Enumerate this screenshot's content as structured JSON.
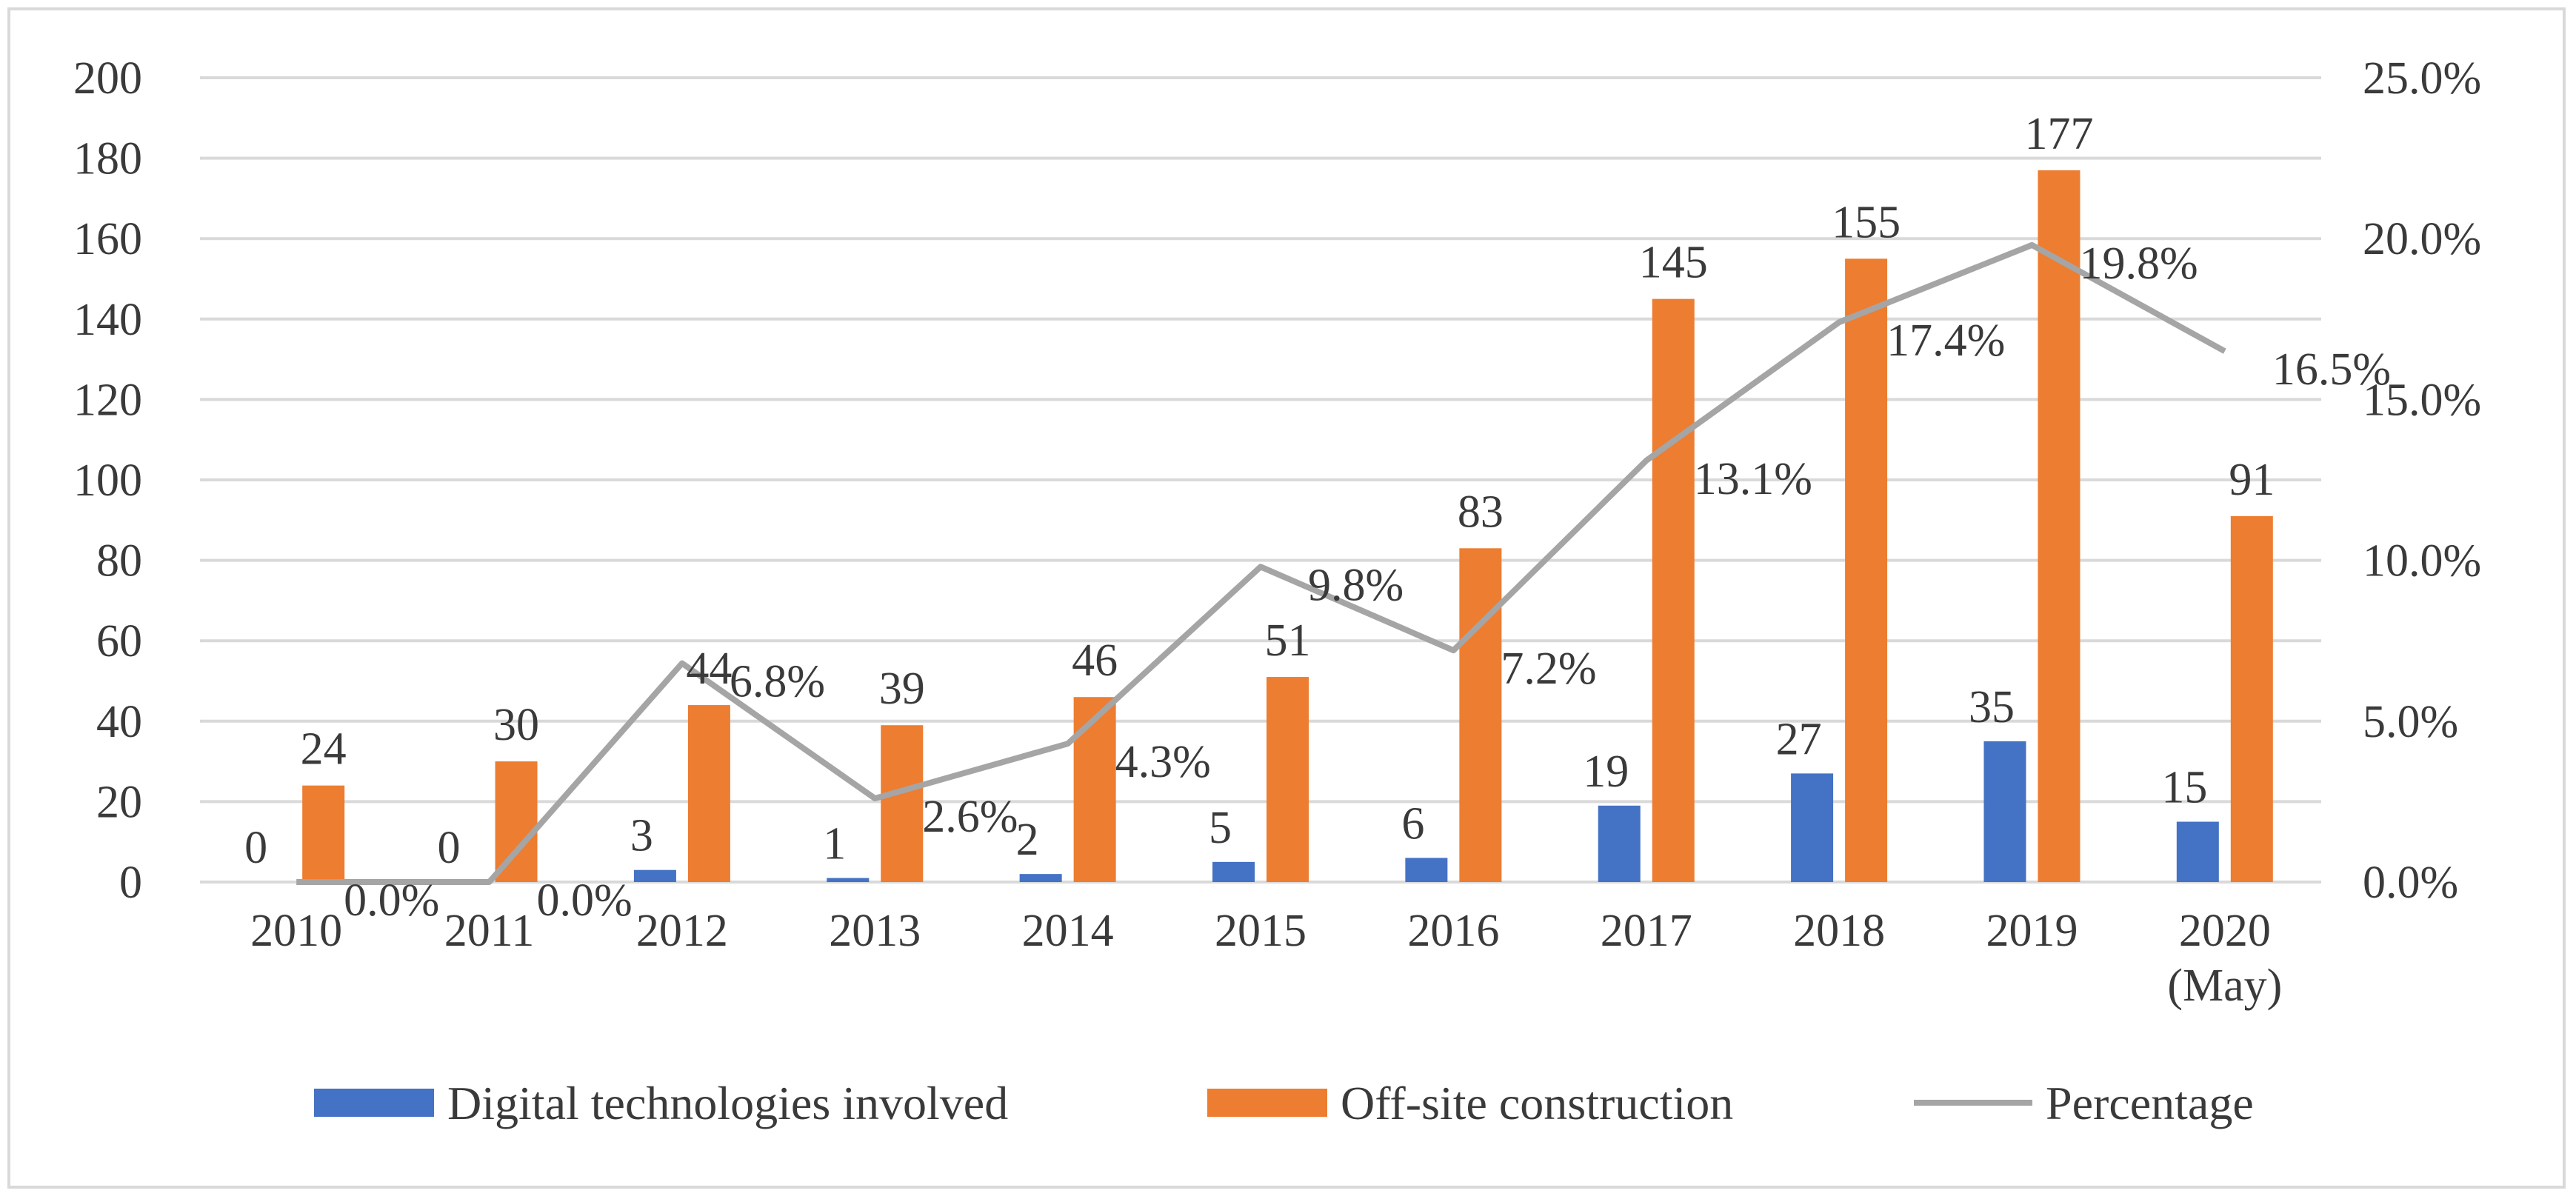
{
  "chart_data": {
    "type": "bar",
    "title": "",
    "categories": [
      "2010",
      "2011",
      "2012",
      "2013",
      "2014",
      "2015",
      "2016",
      "2017",
      "2018",
      "2019",
      "2020\n(May)"
    ],
    "category_labels": [
      [
        "2010"
      ],
      [
        "2011"
      ],
      [
        "2012"
      ],
      [
        "2013"
      ],
      [
        "2014"
      ],
      [
        "2015"
      ],
      [
        "2016"
      ],
      [
        "2017"
      ],
      [
        "2018"
      ],
      [
        "2019"
      ],
      [
        "2020",
        "(May)"
      ]
    ],
    "series": [
      {
        "name": "Digital technologies involved",
        "type": "bar",
        "axis": "left",
        "color": "#4472c4",
        "values": [
          0,
          0,
          3,
          1,
          2,
          5,
          6,
          19,
          27,
          35,
          15
        ]
      },
      {
        "name": "Off-site construction",
        "type": "bar",
        "axis": "left",
        "color": "#ed7d31",
        "values": [
          24,
          30,
          44,
          39,
          46,
          51,
          83,
          145,
          155,
          177,
          91
        ]
      },
      {
        "name": "Percentage",
        "type": "line",
        "axis": "right",
        "color": "#a5a5a5",
        "values": [
          0.0,
          0.0,
          6.8,
          2.6,
          4.3,
          9.8,
          7.2,
          13.1,
          17.4,
          19.8,
          16.5
        ],
        "labels": [
          "0.0%",
          "0.0%",
          "6.8%",
          "2.6%",
          "4.3%",
          "9.8%",
          "7.2%",
          "13.1%",
          "17.4%",
          "19.8%",
          "16.5%"
        ]
      }
    ],
    "y_left": {
      "min": 0,
      "max": 200,
      "step": 20,
      "ticks": [
        "0",
        "20",
        "40",
        "60",
        "80",
        "100",
        "120",
        "140",
        "160",
        "180",
        "200"
      ]
    },
    "y_right": {
      "min": 0,
      "max": 25,
      "step": 5,
      "ticks": [
        "0.0%",
        "5.0%",
        "10.0%",
        "15.0%",
        "20.0%",
        "25.0%"
      ]
    },
    "grid": true,
    "legend_position": "bottom"
  }
}
